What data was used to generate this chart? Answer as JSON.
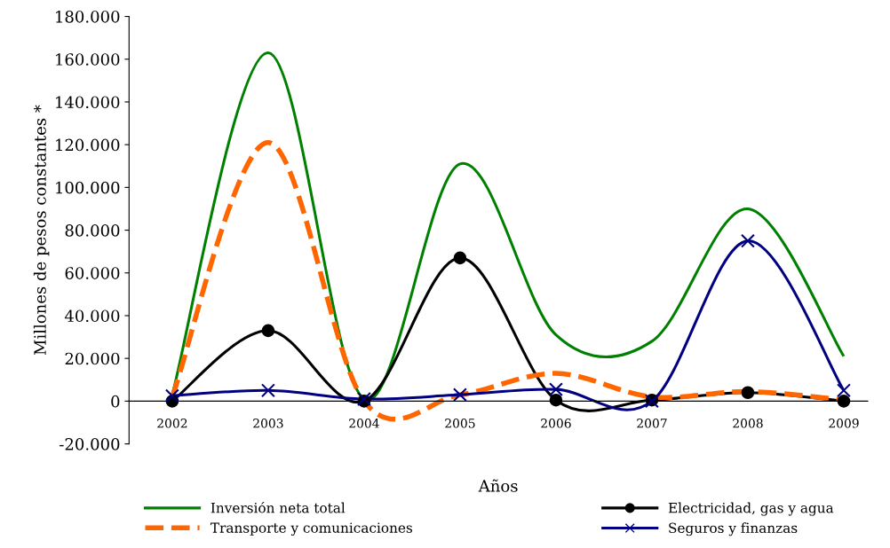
{
  "chart_data": {
    "type": "line",
    "xlabel": "Años",
    "ylabel": "Millones de pesos constantes *",
    "categories": [
      "2002",
      "2003",
      "2004",
      "2005",
      "2006",
      "2007",
      "2008",
      "2009"
    ],
    "ylim": [
      -20000,
      180000
    ],
    "yticks": [
      {
        "value": -20000,
        "label": "-20.000"
      },
      {
        "value": 0,
        "label": "0"
      },
      {
        "value": 20000,
        "label": "20.000"
      },
      {
        "value": 40000,
        "label": "40.000"
      },
      {
        "value": 60000,
        "label": "60.000"
      },
      {
        "value": 80000,
        "label": "80.000"
      },
      {
        "value": 100000,
        "label": "100.000"
      },
      {
        "value": 120000,
        "label": "120.000"
      },
      {
        "value": 140000,
        "label": "140.000"
      },
      {
        "value": 160000,
        "label": "160.000"
      },
      {
        "value": 180000,
        "label": "180.000"
      }
    ],
    "grid": false,
    "legend": "bottom",
    "series": [
      {
        "name": "Inversión neta total",
        "color": "#008000",
        "marker": "none",
        "line_style": "solid",
        "values": [
          3000,
          163000,
          1000,
          111000,
          31000,
          28000,
          90000,
          21000
        ]
      },
      {
        "name": "Electricidad, gas y agua",
        "color": "#000000",
        "marker": "circle",
        "line_style": "solid",
        "values": [
          0,
          33000,
          0,
          67000,
          500,
          500,
          4000,
          0
        ]
      },
      {
        "name": "Transporte y comunicaciones",
        "color": "#ff6600",
        "marker": "none",
        "line_style": "dashed",
        "values": [
          2000,
          121000,
          0,
          3000,
          13000,
          2000,
          4500,
          500
        ]
      },
      {
        "name": "Seguros y finanzas",
        "color": "#000080",
        "marker": "cross",
        "line_style": "solid",
        "values": [
          2500,
          5000,
          1000,
          3000,
          5500,
          0,
          75000,
          5000
        ]
      }
    ]
  }
}
